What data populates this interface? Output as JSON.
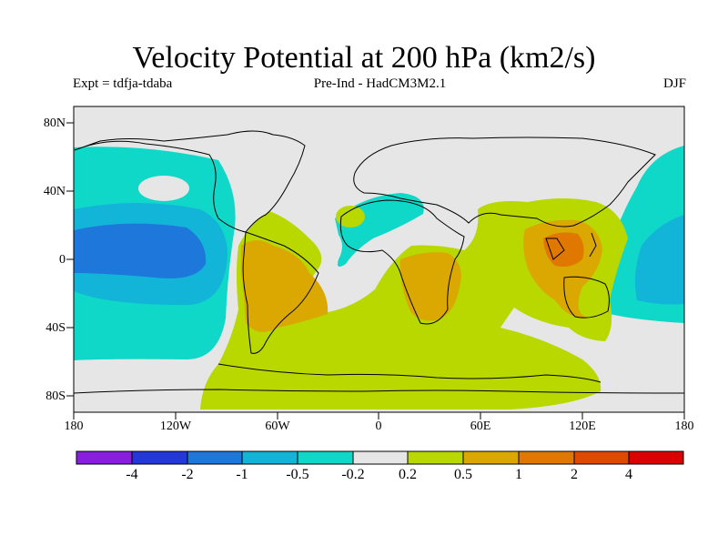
{
  "title": "Velocity Potential at 200 hPa (km2/s)",
  "experiment": "Expt = tdfja-tdaba",
  "model": "Pre-Ind - HadCM3M2.1",
  "season": "DJF",
  "lat_labels": [
    "80N",
    "40N",
    "0",
    "40S",
    "80S"
  ],
  "lon_labels": [
    "180",
    "120W",
    "60W",
    "0",
    "60E",
    "120E",
    "180"
  ],
  "colorbar": {
    "levels": [
      "-4",
      "-2",
      "-1",
      "-0.5",
      "-0.2",
      "0.2",
      "0.5",
      "1",
      "2",
      "4"
    ],
    "colors": [
      "#8a1ee0",
      "#2437d8",
      "#1e78dc",
      "#12b5d8",
      "#10d8c8",
      "#e6e6e6",
      "#b8d800",
      "#daa800",
      "#e07800",
      "#e04a00",
      "#dd0000"
    ]
  },
  "colors": {
    "background": "#e6e6e6",
    "coast": "#000000"
  }
}
